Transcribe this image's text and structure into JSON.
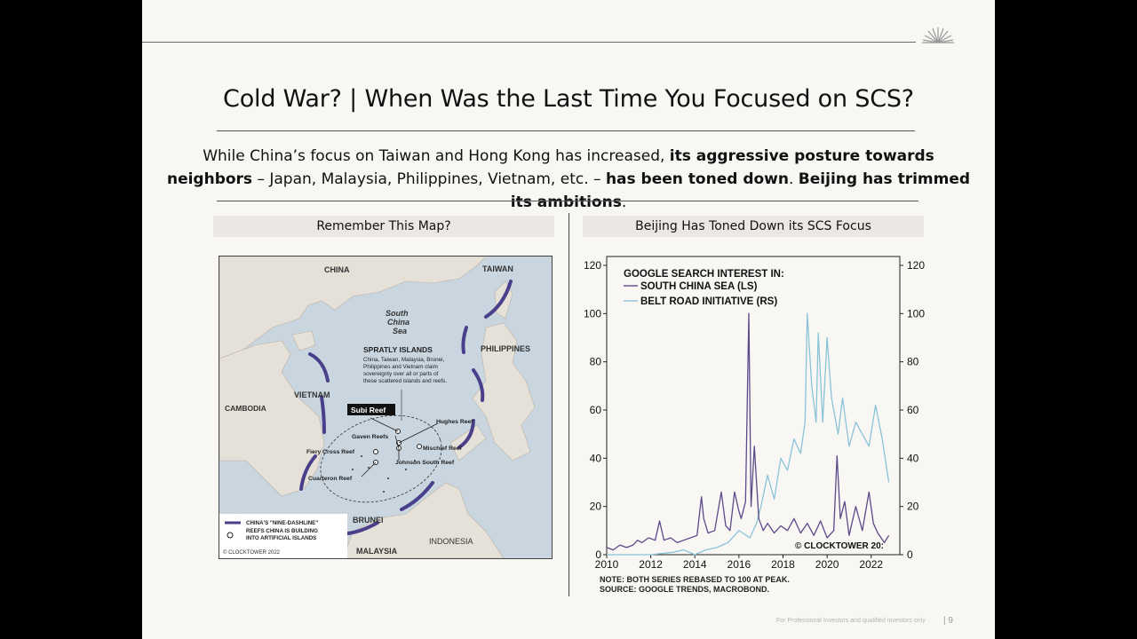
{
  "slide": {
    "title": "Cold War? | When Was the Last Time You Focused on SCS?",
    "subtitle_parts": [
      {
        "text": "While China’s focus on Taiwan and Hong Kong has increased, ",
        "bold": false
      },
      {
        "text": "its aggressive posture towards neighbors",
        "bold": true
      },
      {
        "text": " – Japan, Malaysia, Philippines, Vietnam, etc. – ",
        "bold": false
      },
      {
        "text": "has been toned down",
        "bold": true
      },
      {
        "text": ". ",
        "bold": false
      },
      {
        "text": "Beijing has trimmed its ambitions",
        "bold": true
      },
      {
        "text": ".",
        "bold": false
      }
    ],
    "footer": "For Professional Investors and qualified investors only",
    "page_number": "| 9"
  },
  "left_panel": {
    "header": "Remember This Map?",
    "map": {
      "labels": {
        "china": "CHINA",
        "taiwan": "TAIWAN",
        "sea_line1": "South",
        "sea_line2": "China",
        "sea_line3": "Sea",
        "spratly_title": "SPRATLY ISLANDS",
        "spratly_desc1": "China, Taiwan, Malaysia, Brunei,",
        "spratly_desc2": "Philippines and Vietnam claim",
        "spratly_desc3": "sovereignty over all or parts of",
        "spratly_desc4": "these scattered islands and reefs.",
        "philippines": "PHILIPPINES",
        "vietnam": "VIETNAM",
        "cambodia": "CAMBODIA",
        "subi": "Subi Reef",
        "hughes": "Hughes Reef",
        "gaven": "Gaven Reefs",
        "fiery": "Fiery Cross Reef",
        "mischief": "Mischief Reef",
        "johnson": "Johnson South Reef",
        "cuarteron": "Cuarteron Reef",
        "brunei": "BRUNEI",
        "indonesia": "INDONESIA",
        "malaysia": "MALAYSIA",
        "legend_line1": "CHINA'S \"NINE-DASHLINE\"",
        "legend_line2": "REEFS CHINA IS BUILDING",
        "legend_line3": "INTO ARTIFICIAL ISLANDS",
        "copyright": "© CLOCKTOWER 2022"
      },
      "colors": {
        "sea": "#c9d6e0",
        "land": "#e6e1d8",
        "dashline": "#4a3f8a"
      }
    }
  },
  "right_panel": {
    "header": "Beijing Has Toned Down its SCS Focus",
    "legend_title": "GOOGLE SEARCH INTEREST IN:",
    "note": "NOTE: BOTH SERIES REBASED TO 100 AT PEAK.",
    "source": "SOURCE: GOOGLE TRENDS, MACROBOND.",
    "copyright": "© CLOCKTOWER 20:"
  },
  "chart_data": {
    "type": "line",
    "xlim": [
      2010,
      2023.3
    ],
    "ylim": [
      0,
      120
    ],
    "y_right_lim": [
      0,
      120
    ],
    "x_ticks": [
      2010,
      2012,
      2014,
      2016,
      2018,
      2020,
      2022
    ],
    "y_ticks": [
      0,
      20,
      40,
      60,
      80,
      100,
      120
    ],
    "series": [
      {
        "name": "SOUTH CHINA SEA (LS)",
        "color": "#5b4a8a",
        "x": [
          2010.0,
          2010.3,
          2010.6,
          2010.9,
          2011.2,
          2011.4,
          2011.6,
          2011.9,
          2012.2,
          2012.4,
          2012.6,
          2012.9,
          2013.2,
          2013.5,
          2013.8,
          2014.1,
          2014.3,
          2014.4,
          2014.6,
          2014.9,
          2015.2,
          2015.4,
          2015.6,
          2015.8,
          2016.0,
          2016.1,
          2016.3,
          2016.45,
          2016.55,
          2016.7,
          2016.9,
          2017.1,
          2017.3,
          2017.6,
          2017.9,
          2018.2,
          2018.5,
          2018.8,
          2019.1,
          2019.4,
          2019.7,
          2020.0,
          2020.3,
          2020.45,
          2020.6,
          2020.8,
          2021.0,
          2021.3,
          2021.6,
          2021.9,
          2022.1,
          2022.3,
          2022.6,
          2022.8
        ],
        "y": [
          3,
          2,
          4,
          3,
          4,
          6,
          5,
          7,
          6,
          14,
          6,
          7,
          5,
          6,
          7,
          8,
          24,
          15,
          9,
          10,
          26,
          12,
          10,
          26,
          18,
          15,
          22,
          100,
          20,
          45,
          15,
          10,
          13,
          9,
          12,
          10,
          15,
          9,
          13,
          8,
          14,
          7,
          10,
          41,
          15,
          22,
          8,
          20,
          10,
          26,
          13,
          9,
          5,
          8
        ]
      },
      {
        "name": "BELT ROAD INITIATIVE (RS)",
        "color": "#8ac3d8",
        "x": [
          2010.0,
          2011.0,
          2012.0,
          2013.0,
          2013.5,
          2014.0,
          2014.5,
          2015.0,
          2015.5,
          2016.0,
          2016.5,
          2016.8,
          2017.0,
          2017.3,
          2017.6,
          2017.9,
          2018.2,
          2018.5,
          2018.8,
          2019.0,
          2019.1,
          2019.3,
          2019.5,
          2019.6,
          2019.8,
          2020.0,
          2020.2,
          2020.5,
          2020.7,
          2021.0,
          2021.3,
          2021.6,
          2021.9,
          2022.2,
          2022.5,
          2022.8
        ],
        "y": [
          0,
          0,
          0,
          1,
          2,
          0,
          2,
          3,
          5,
          10,
          7,
          13,
          20,
          33,
          23,
          40,
          35,
          48,
          42,
          55,
          100,
          70,
          55,
          92,
          55,
          90,
          65,
          50,
          65,
          45,
          55,
          50,
          45,
          62,
          48,
          30
        ]
      }
    ]
  }
}
